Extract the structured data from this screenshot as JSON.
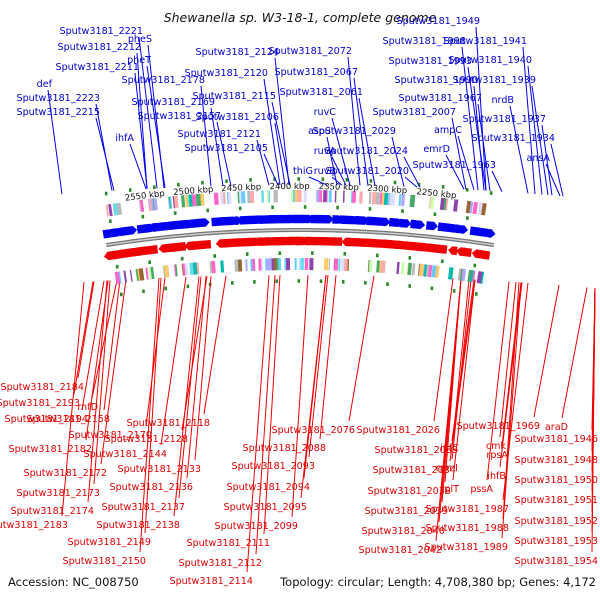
{
  "title": "Shewanella sp. W3-18-1, complete genome",
  "footer": {
    "accession": "Accession: NC_008750",
    "stats": "Topology: circular; Length: 4,708,380 bp; Genes: 4,172"
  },
  "scale_labels": [
    "2550 kbp",
    "2500 kbp",
    "2450 kbp",
    "2400 kbp",
    "2350 kbp",
    "2300 kbp",
    "2250 kbp"
  ],
  "colors": {
    "forward_strand": "#0000ee",
    "reverse_strand": "#ee0000",
    "backbone": "#888888",
    "tick": "#2a8a2a"
  },
  "top_labels": [
    "Sputw3181_1949",
    "Sputw3181_1941",
    "Sputw3181_1940",
    "Sputw3181_1939",
    "nrdB",
    "Sputw3181_1937",
    "Sputw3181_1934",
    "ansA",
    "Sputw3181_1998",
    "Sputw3181_1993",
    "Sputw3181_1990",
    "Sputw3181_1967",
    "Sputw3181_2007",
    "ampC",
    "emrD",
    "Sputw3181_1963",
    "Sputw3181_2072",
    "Sputw3181_2067",
    "Sputw3181_2061",
    "ruvC",
    "aspS",
    "Sputw3181_2029",
    "ruvA",
    "Sputw3181_2024",
    "thiG",
    "ruvB",
    "Sputw3181_2020",
    "Sputw3181_2124",
    "Sputw3181_2120",
    "Sputw3181_2115",
    "Sputw3181_2106",
    "Sputw3181_2121",
    "Sputw3181_2105",
    "pheS",
    "pheT",
    "Sputw3181_2178",
    "Sputw3181_2169",
    "Sputw3181_2157",
    "ihfA",
    "Sputw3181_2221",
    "Sputw3181_2212",
    "Sputw3181_2211",
    "def",
    "Sputw3181_2223",
    "Sputw3181_2215"
  ],
  "bottom_labels": [
    "Sputw3181_2184",
    "Sputw3181_2193",
    "Sputw3181_2194",
    "rnfD",
    "Sputw3181_2158",
    "Sputw3181_2170",
    "Sputw3181_2182",
    "Sputw3181_2172",
    "Sputw3181_2173",
    "Sputw3181_2174",
    "Sputw3181_2183",
    "Sputw3181_2144",
    "Sputw3181_2133",
    "Sputw3181_2136",
    "Sputw3181_2137",
    "Sputw3181_2138",
    "Sputw3181_2149",
    "Sputw3181_2150",
    "Sputw3181_2118",
    "Sputw3181_2128",
    "Sputw3181_2111",
    "Sputw3181_2112",
    "Sputw3181_2114",
    "Sputw3181_2076",
    "Sputw3181_2088",
    "Sputw3181_2093",
    "Sputw3181_2094",
    "Sputw3181_2095",
    "Sputw3181_2099",
    "Sputw3181_2026",
    "Sputw3181_2033",
    "Sputw3181_2034",
    "Sputw3181_2038",
    "Sputw3181_2039",
    "Sputw3181_2040",
    "Sputw3181_2042",
    "infC",
    "rpmI",
    "rplT",
    "Sputw3181_1987",
    "Sputw3181_1988",
    "Sputw3181_1989",
    "pssA",
    "Sputw3181_1969",
    "cmk",
    "rpsA",
    "ihfB",
    "araD",
    "Sputw3181_1946",
    "Sputw3181_1948",
    "Sputw3181_1950",
    "Sputw3181_1951",
    "Sputw3181_1952",
    "Sputw3181_1953",
    "Sputw3181_1954"
  ]
}
